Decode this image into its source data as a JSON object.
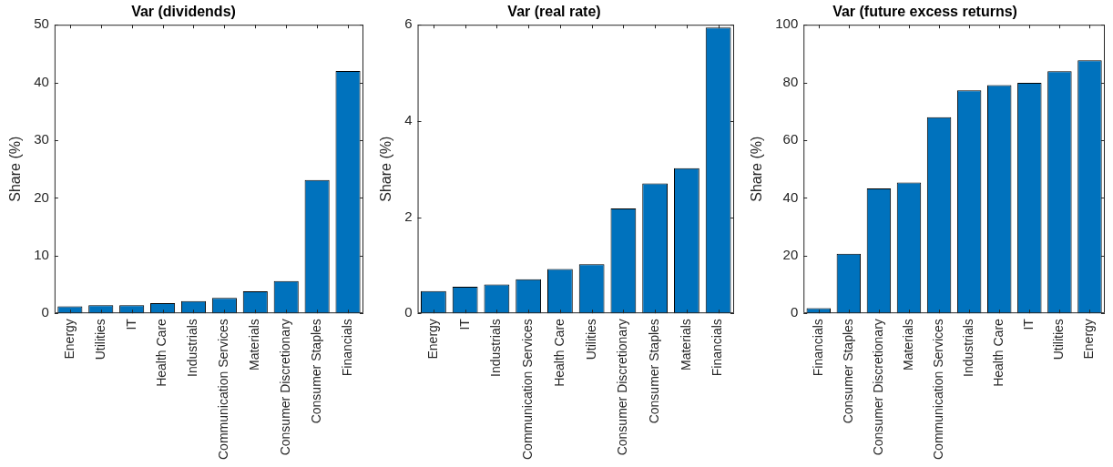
{
  "chart_data": [
    {
      "type": "bar",
      "title": "Var (dividends)",
      "ylabel": "Share (%)",
      "categories": [
        "Energy",
        "Utilities",
        "IT",
        "Health Care",
        "Industrials",
        "Communication Services",
        "Materials",
        "Consumer Discretionary",
        "Consumer Staples",
        "Financials"
      ],
      "values": [
        1.2,
        1.4,
        1.4,
        1.75,
        2.1,
        2.65,
        3.8,
        5.6,
        23.1,
        42.0
      ],
      "color": "#0072bd",
      "ylim": [
        0,
        50
      ],
      "yticks": [
        0,
        10,
        20,
        30,
        40,
        50
      ]
    },
    {
      "type": "bar",
      "title": "Var (real rate)",
      "ylabel": "Share (%)",
      "categories": [
        "Energy",
        "IT",
        "Industrials",
        "Communication Services",
        "Health Care",
        "Utilities",
        "Consumer Discretionary",
        "Consumer Staples",
        "Materials",
        "Financials"
      ],
      "values": [
        0.46,
        0.55,
        0.6,
        0.71,
        0.92,
        1.02,
        2.18,
        2.7,
        3.02,
        5.94
      ],
      "color": "#0072bd",
      "ylim": [
        0,
        6
      ],
      "yticks": [
        0,
        2,
        4,
        6
      ]
    },
    {
      "type": "bar",
      "title": "Var (future excess returns)",
      "ylabel": "Share (%)",
      "categories": [
        "Financials",
        "Consumer Staples",
        "Consumer Discretionary",
        "Materials",
        "Communication Services",
        "Industrials",
        "Health Care",
        "IT",
        "Utilities",
        "Energy"
      ],
      "values": [
        1.8,
        20.6,
        43.3,
        45.3,
        68.0,
        77.3,
        79.1,
        79.9,
        83.9,
        87.7
      ],
      "color": "#0072bd",
      "ylim": [
        0,
        100
      ],
      "yticks": [
        0,
        20,
        40,
        60,
        80,
        100
      ]
    }
  ]
}
